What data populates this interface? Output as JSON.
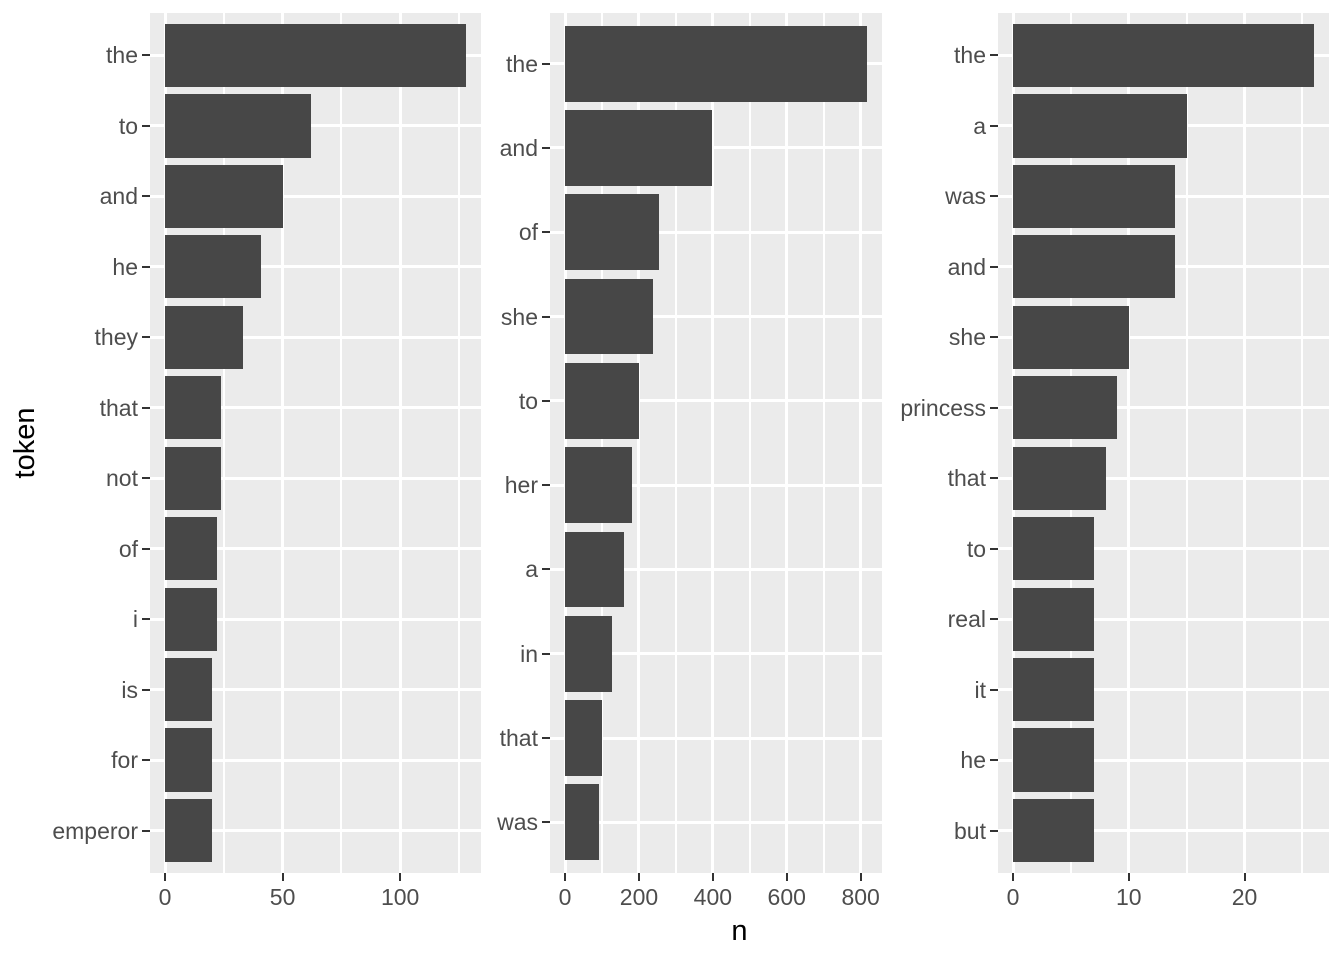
{
  "chart_data": {
    "type": "bar",
    "orientation": "horizontal",
    "xlabel": "n",
    "ylabel": "token",
    "grid": "on",
    "legend": "none",
    "facets": 3,
    "colors": {
      "bar": "#474747",
      "panel_bg": "#EBEBEB",
      "gridline": "#FFFFFF",
      "tick_label": "#4D4D4D",
      "axis_title": "#000000",
      "tick_mark": "#333333",
      "background": "#FFFFFF"
    },
    "panels": [
      {
        "categories": [
          "the",
          "to",
          "and",
          "he",
          "they",
          "that",
          "not",
          "of",
          "i",
          "is",
          "for",
          "emperor"
        ],
        "values": [
          128,
          62,
          50,
          41,
          33,
          24,
          24,
          22,
          22,
          20,
          20,
          20
        ],
        "x_ticks": [
          0,
          50,
          100
        ],
        "x_minor_ticks": [
          25,
          75,
          125
        ],
        "xlim": [
          0,
          128
        ]
      },
      {
        "categories": [
          "the",
          "and",
          "of",
          "she",
          "to",
          "her",
          "a",
          "in",
          "that",
          "was"
        ],
        "values": [
          817,
          399,
          253,
          239,
          199,
          181,
          160,
          126,
          99,
          93
        ],
        "x_ticks": [
          0,
          200,
          400,
          600,
          800
        ],
        "x_minor_ticks": [
          100,
          300,
          500,
          700
        ],
        "xlim": [
          0,
          817
        ]
      },
      {
        "categories": [
          "the",
          "a",
          "was",
          "and",
          "she",
          "princess",
          "that",
          "to",
          "real",
          "it",
          "he",
          "but"
        ],
        "values": [
          26,
          15,
          14,
          14,
          10,
          9,
          8,
          7,
          7,
          7,
          7,
          7
        ],
        "x_ticks": [
          0,
          10,
          20
        ],
        "x_minor_ticks": [
          5,
          15,
          25
        ],
        "xlim": [
          0,
          26
        ]
      }
    ]
  }
}
